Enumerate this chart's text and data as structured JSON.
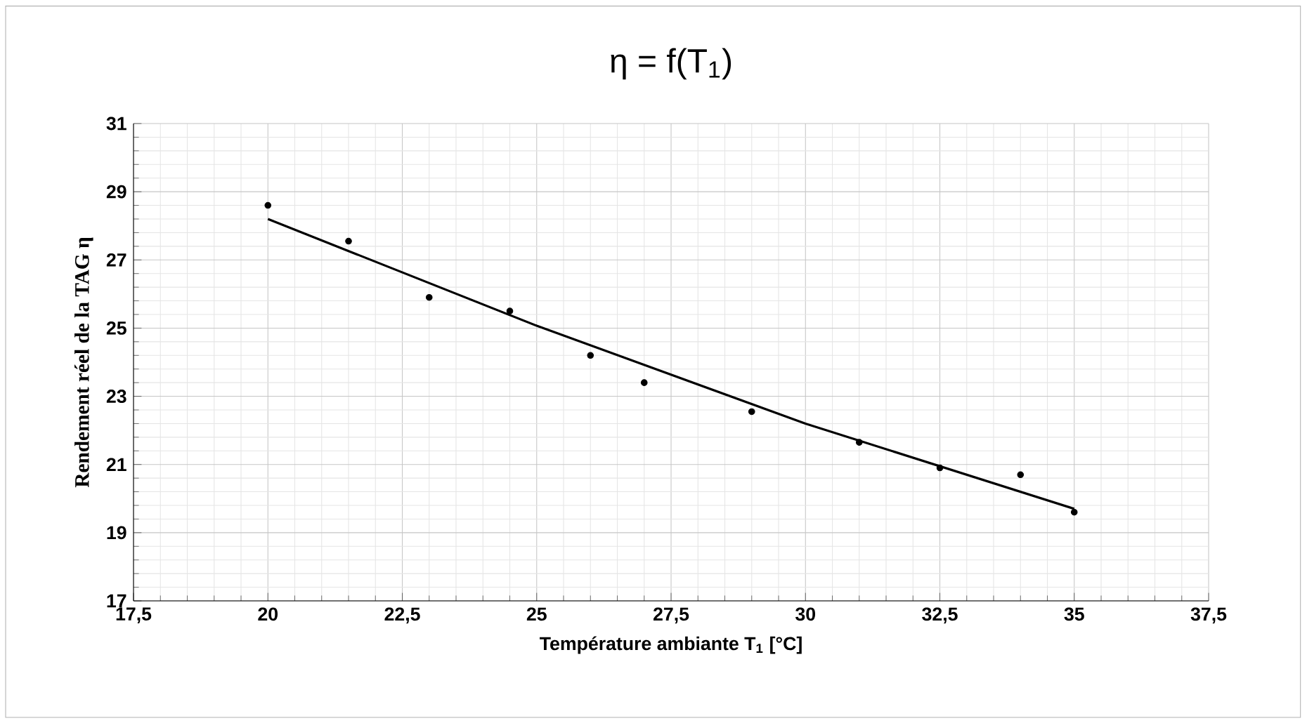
{
  "chart_data": {
    "type": "scatter",
    "title": "η = f(T$_{1}$)",
    "xlabel": "Température ambiante T$_{1}$ [°C]",
    "ylabel": "Rendement réel de la TAG η",
    "xlim": [
      17.5,
      37.5
    ],
    "ylim": [
      17,
      31
    ],
    "xticks": [
      {
        "value": 17.5,
        "label": "17,5"
      },
      20,
      {
        "value": 22.5,
        "label": "22,5"
      },
      25,
      {
        "value": 27.5,
        "label": "27,5"
      },
      30,
      {
        "value": 32.5,
        "label": "32,5"
      },
      35,
      {
        "value": 37.5,
        "label": "37,5"
      }
    ],
    "yticks": [
      17,
      19,
      21,
      23,
      25,
      27,
      29,
      31
    ],
    "grid": true,
    "marker": "circle",
    "series": [
      {
        "color": "#000000",
        "x": [
          20,
          21.5,
          23,
          24.5,
          26,
          27,
          29,
          31,
          32.5,
          34,
          35
        ],
        "values": [
          28.6,
          27.55,
          25.9,
          25.5,
          24.2,
          23.4,
          22.55,
          21.65,
          20.9,
          20.7,
          19.6
        ]
      },
      {
        "type": "line",
        "color": "#000000",
        "marker": "none",
        "x": [
          20,
          25,
          30,
          35
        ],
        "values": [
          28.2,
          25.07,
          22.2,
          19.7
        ]
      }
    ]
  }
}
